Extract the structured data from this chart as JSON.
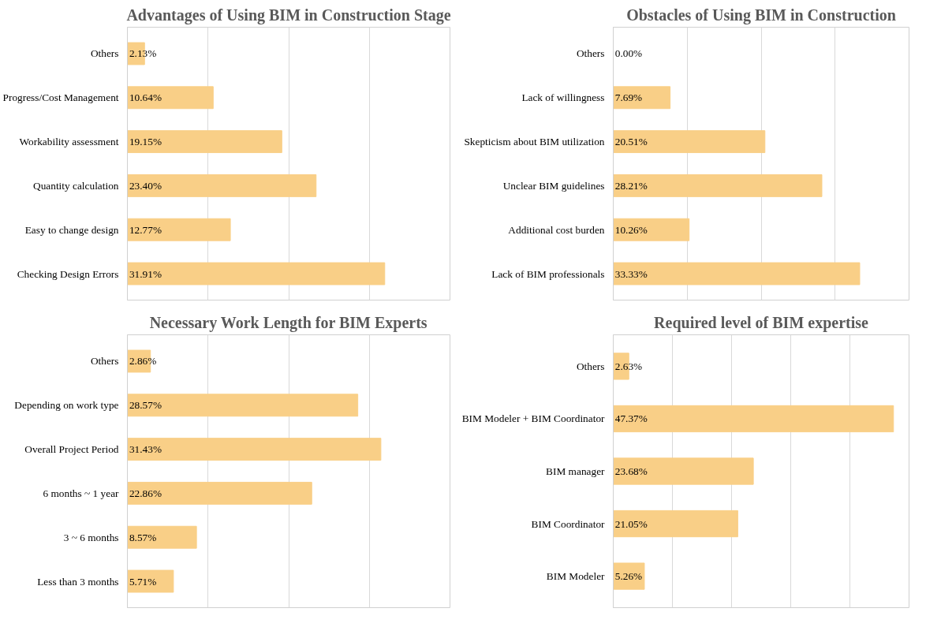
{
  "chart_data": [
    {
      "type": "bar",
      "orientation": "horizontal",
      "title": "Advantages of Using BIM in Construction Stage",
      "categories": [
        "Others",
        "Progress/Cost Management",
        "Workability assessment",
        "Quantity calculation",
        "Easy to change design",
        "Checking Design Errors"
      ],
      "values": [
        2.13,
        10.64,
        19.15,
        23.4,
        12.77,
        31.91
      ],
      "value_labels": [
        "2.13%",
        "10.64%",
        "19.15%",
        "23.40%",
        "12.77%",
        "31.91%"
      ],
      "color": "#f9cf87",
      "xlim": [
        0,
        40
      ],
      "xticks": [
        {
          "value": 0,
          "label": null
        },
        {
          "value": 10,
          "label": null
        },
        {
          "value": 20,
          "label": null
        },
        {
          "value": 30,
          "label": null
        },
        {
          "value": 40,
          "label": null
        }
      ],
      "grid": "x",
      "tick_labels": "y"
    },
    {
      "type": "bar",
      "orientation": "horizontal",
      "title": "Obstacles of Using BIM in Construction",
      "categories": [
        "Others",
        "Lack of willingness",
        "Skepticism about BIM utilization",
        "Unclear BIM guidelines",
        "Additional cost burden",
        "Lack of BIM professionals"
      ],
      "values": [
        0.0,
        7.69,
        20.51,
        28.21,
        10.26,
        33.33
      ],
      "value_labels": [
        "0.00%",
        "7.69%",
        "20.51%",
        "28.21%",
        "10.26%",
        "33.33%"
      ],
      "color": "#f9cf87",
      "xlim": [
        0,
        40
      ],
      "xticks": [
        {
          "value": 0,
          "label": null
        },
        {
          "value": 10,
          "label": null
        },
        {
          "value": 20,
          "label": null
        },
        {
          "value": 30,
          "label": null
        },
        {
          "value": 40,
          "label": null
        }
      ],
      "grid": "x",
      "tick_labels": "y"
    },
    {
      "type": "bar",
      "orientation": "horizontal",
      "title": "Necessary Work Length for BIM Experts",
      "categories": [
        "Others",
        "Depending on work type",
        "Overall Project Period",
        "6 months ~ 1 year",
        "3 ~ 6 months",
        "Less than 3 months"
      ],
      "values": [
        2.86,
        28.57,
        31.43,
        22.86,
        8.57,
        5.71
      ],
      "value_labels": [
        "2.86%",
        "28.57%",
        "31.43%",
        "22.86%",
        "8.57%",
        "5.71%"
      ],
      "color": "#f9cf87",
      "xlim": [
        0,
        40
      ],
      "xticks": [
        {
          "value": 0,
          "label": null
        },
        {
          "value": 10,
          "label": null
        },
        {
          "value": 20,
          "label": null
        },
        {
          "value": 30,
          "label": null
        },
        {
          "value": 40,
          "label": null
        }
      ],
      "grid": "x",
      "tick_labels": "y"
    },
    {
      "type": "bar",
      "orientation": "horizontal",
      "title": "Required level of BIM expertise",
      "categories": [
        "Others",
        "BIM Modeler + BIM Coordinator",
        "BIM manager",
        "BIM Coordinator",
        "BIM Modeler"
      ],
      "values": [
        2.63,
        47.37,
        23.68,
        21.05,
        5.26
      ],
      "value_labels": [
        "2.63%",
        "47.37%",
        "23.68%",
        "21.05%",
        "5.26%"
      ],
      "color": "#f9cf87",
      "xlim": [
        0,
        50
      ],
      "xticks": [
        {
          "value": 0,
          "label": null
        },
        {
          "value": 10,
          "label": null
        },
        {
          "value": 20,
          "label": null
        },
        {
          "value": 30,
          "label": null
        },
        {
          "value": 40,
          "label": null
        },
        {
          "value": 50,
          "label": null
        }
      ],
      "grid": "x",
      "tick_labels": "y"
    }
  ]
}
